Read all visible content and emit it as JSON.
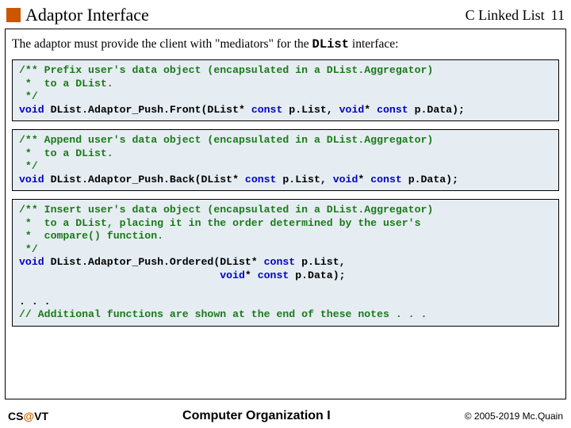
{
  "header": {
    "title": "Adaptor Interface",
    "topic": "C Linked List",
    "page_number": "11"
  },
  "intro": {
    "lead": "The adaptor must provide the client with \"mediators\" for the ",
    "code_token": "DList",
    "tail": " interface:"
  },
  "code1": {
    "c1": "/** Prefix user's data object (encapsulated in a DList.Aggregator)",
    "c2": " *  to a DList.",
    "c3": " */",
    "kw_void": "void",
    "fn": " DList.Adaptor_Push.Front(DList* ",
    "kw_const1": "const",
    "mid": " p.List, ",
    "kw_voidp": "void",
    "star": "* ",
    "kw_const2": "const",
    "end": " p.Data);"
  },
  "code2": {
    "c1": "/** Append user's data object (encapsulated in a DList.Aggregator)",
    "c2": " *  to a DList.",
    "c3": " */",
    "kw_void": "void",
    "fn": " DList.Adaptor_Push.Back(DList* ",
    "kw_const1": "const",
    "mid": " p.List, ",
    "kw_voidp": "void",
    "star": "* ",
    "kw_const2": "const",
    "end": " p.Data);"
  },
  "code3": {
    "c1": "/** Insert user's data object (encapsulated in a DList.Aggregator)",
    "c2": " *  to a DList, placing it in the order determined by the user's",
    "c3": " *  compare() function.",
    "c4": " */",
    "kw_void": "void",
    "fn": " DList.Adaptor_Push.Ordered(DList* ",
    "kw_const1": "const",
    "mid": " p.List,",
    "pad": "                                ",
    "kw_voidp": "void",
    "star": "* ",
    "kw_const2": "const",
    "end": " p.Data);",
    "dots": ". . .",
    "tail_comment": "// Additional functions are shown at the end of these notes . . ."
  },
  "footer": {
    "left_cs": "CS",
    "left_at": "@",
    "left_vt": "VT",
    "center": "Computer Organization I",
    "right": "© 2005-2019 Mc.Quain"
  },
  "colors": {
    "orange": "#cc5500",
    "codebg": "#e6edf2",
    "keyword": "#0000cc",
    "comment": "#1a7a1a"
  }
}
